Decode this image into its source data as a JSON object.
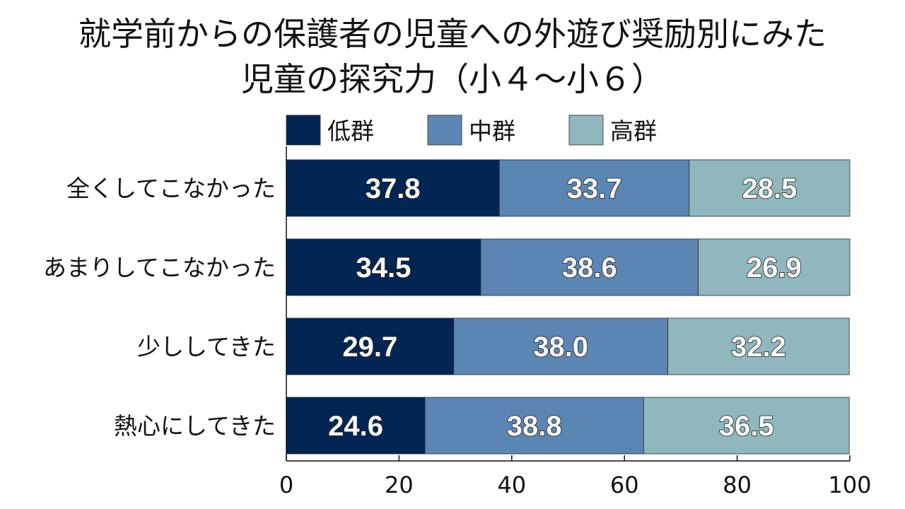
{
  "title_lines": [
    "就学前からの保護者の児童への外遊び奨励別にみた",
    "児童の探究力（小４～小６）"
  ],
  "chart_data": {
    "type": "bar",
    "orientation": "horizontal",
    "stacked": true,
    "categories": [
      "全くしてこなかった",
      "あまりしてこなかった",
      "少ししてきた",
      "熱心にしてきた"
    ],
    "series": [
      {
        "name": "低群",
        "color": "#022654",
        "values": [
          37.8,
          34.5,
          29.7,
          24.6
        ]
      },
      {
        "name": "中群",
        "color": "#5b86b3",
        "values": [
          33.7,
          38.6,
          38.0,
          38.8
        ]
      },
      {
        "name": "高群",
        "color": "#8fb7bd",
        "values": [
          28.5,
          26.9,
          32.2,
          36.5
        ]
      }
    ],
    "xlim": [
      0,
      100
    ],
    "xticks": [
      0,
      20,
      40,
      60,
      80,
      100
    ],
    "grid": false,
    "legend_position": "top"
  }
}
